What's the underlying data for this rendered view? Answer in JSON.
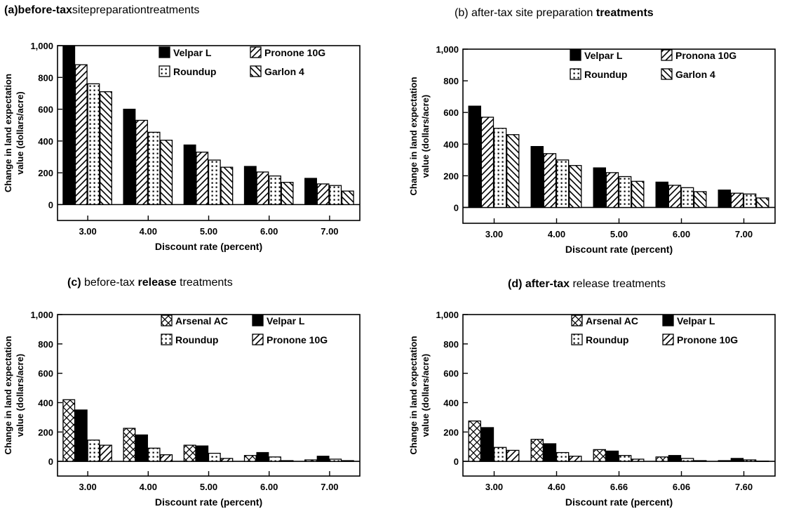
{
  "chart_data": [
    {
      "type": "bar",
      "title_parts": [
        [
          "(a)before-tax",
          true
        ],
        [
          "site",
          false
        ],
        [
          "preparation",
          false
        ],
        [
          "treatments",
          false
        ]
      ],
      "xlabel": "Discount rate (percent)",
      "ylabel": [
        "Change in land expectation",
        "value (dollars/acre)"
      ],
      "categories": [
        "3.00",
        "4.00",
        "5.00",
        "6.00",
        "7.00"
      ],
      "ylim": [
        -100,
        1000
      ],
      "yticks": [
        "0",
        "200",
        "400",
        "600",
        "800",
        "1,000"
      ],
      "legend_placement": "top-right",
      "series": [
        {
          "name": "Velpar L",
          "pattern": "solid",
          "values": [
            1000,
            600,
            375,
            240,
            165
          ]
        },
        {
          "name": "Pronone 10G",
          "pattern": "diag",
          "values": [
            880,
            530,
            330,
            205,
            130
          ]
        },
        {
          "name": "Roundup",
          "pattern": "dots",
          "values": [
            760,
            455,
            280,
            180,
            120
          ]
        },
        {
          "name": "Garlon 4",
          "pattern": "back",
          "values": [
            710,
            405,
            235,
            140,
            85
          ]
        }
      ]
    },
    {
      "type": "bar",
      "title_parts": [
        [
          "(b) after-tax site preparation ",
          false
        ],
        [
          "treatments",
          true
        ]
      ],
      "xlabel": "Discount rate (percent)",
      "ylabel": [
        "Change in land expectation",
        "value (dollars/acre)"
      ],
      "categories": [
        "3.00",
        "4.00",
        "5.00",
        "6.00",
        "7.00"
      ],
      "ylim": [
        -100,
        1000
      ],
      "yticks": [
        "0",
        "200",
        "400",
        "600",
        "800",
        "1,000"
      ],
      "legend_placement": "top-right",
      "series": [
        {
          "name": "Velpar L",
          "pattern": "solid",
          "values": [
            640,
            385,
            250,
            160,
            110
          ]
        },
        {
          "name": "Pronona 10G",
          "pattern": "diag",
          "values": [
            570,
            340,
            220,
            140,
            90
          ]
        },
        {
          "name": "Roundup",
          "pattern": "dots",
          "values": [
            500,
            300,
            195,
            125,
            85
          ]
        },
        {
          "name": "Garlon 4",
          "pattern": "back",
          "values": [
            460,
            265,
            165,
            100,
            60
          ]
        }
      ]
    },
    {
      "type": "bar",
      "title_parts": [
        [
          "(c)",
          true
        ],
        [
          " before-tax ",
          false
        ],
        [
          "release",
          true
        ],
        [
          " treatments",
          false
        ]
      ],
      "xlabel": "Discount rate (percent)",
      "ylabel": [
        "Change in land expectation",
        "value (dollars/acre)"
      ],
      "categories": [
        "3.00",
        "4.00",
        "5.00",
        "6.00",
        "7.00"
      ],
      "ylim": [
        -100,
        1000
      ],
      "yticks": [
        "0",
        "200",
        "400",
        "600",
        "800",
        "1,000"
      ],
      "legend_placement": "top-right",
      "series": [
        {
          "name": "Arsenal AC",
          "pattern": "cross",
          "values": [
            420,
            225,
            110,
            40,
            10
          ]
        },
        {
          "name": "Velpar L",
          "pattern": "solid",
          "values": [
            350,
            180,
            105,
            60,
            35
          ]
        },
        {
          "name": "Roundup",
          "pattern": "dots",
          "values": [
            145,
            90,
            55,
            30,
            15
          ]
        },
        {
          "name": "Pronone 10G",
          "pattern": "diag",
          "values": [
            110,
            45,
            20,
            5,
            5
          ]
        }
      ]
    },
    {
      "type": "bar",
      "title_parts": [
        [
          "(d) after-tax",
          true
        ],
        [
          " release treatments",
          false
        ]
      ],
      "xlabel": "Discount rate (percent)",
      "ylabel": [
        "Change in land expectation",
        "value (dollars/acre)"
      ],
      "categories": [
        "3.00",
        "4.60",
        "6.66",
        "6.06",
        "7.60"
      ],
      "ylim": [
        -100,
        1000
      ],
      "yticks": [
        "0",
        "200",
        "400",
        "600",
        "800",
        "1,000"
      ],
      "legend_placement": "top-right",
      "series": [
        {
          "name": "Arsenal AC",
          "pattern": "cross",
          "values": [
            275,
            150,
            80,
            30,
            5
          ]
        },
        {
          "name": "Velpar L",
          "pattern": "solid",
          "values": [
            230,
            120,
            70,
            40,
            20
          ]
        },
        {
          "name": "Roundup",
          "pattern": "dots",
          "values": [
            95,
            60,
            40,
            20,
            10
          ]
        },
        {
          "name": "Pronone 10G",
          "pattern": "diag",
          "values": [
            75,
            35,
            15,
            5,
            2
          ]
        }
      ]
    }
  ]
}
